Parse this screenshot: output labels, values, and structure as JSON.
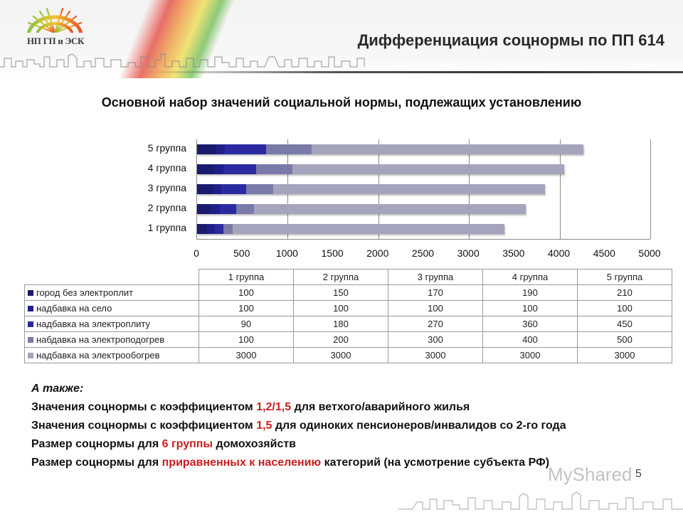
{
  "header": {
    "logo_text": "НП ГП и ЭСК",
    "title": "Дифференциация соцнормы по ПП 614"
  },
  "chart_title": "Основной набор значений социальной нормы, подлежащих установлению",
  "chart": {
    "categories_top_to_bottom": [
      "5 группа",
      "4 группа",
      "3 группа",
      "2 группа",
      "1 группа"
    ],
    "ticks": [
      "0",
      "500",
      "1000",
      "1500",
      "2000",
      "2500",
      "3000",
      "3500",
      "4000",
      "4500",
      "5000"
    ]
  },
  "table": {
    "columns": [
      "1 группа",
      "2 группа",
      "3 группа",
      "4 группа",
      "5 группа"
    ],
    "rows": [
      {
        "label": "город без электроплит",
        "values": [
          "100",
          "150",
          "170",
          "190",
          "210"
        ]
      },
      {
        "label": "надбавка на село",
        "values": [
          "100",
          "100",
          "100",
          "100",
          "100"
        ]
      },
      {
        "label": "надбавка на электроплиту",
        "values": [
          "90",
          "180",
          "270",
          "360",
          "450"
        ]
      },
      {
        "label": "набдавка на электроподогрев",
        "values": [
          "100",
          "200",
          "300",
          "400",
          "500"
        ]
      },
      {
        "label": "надбавка на электрообогрев",
        "values": [
          "3000",
          "3000",
          "3000",
          "3000",
          "3000"
        ]
      }
    ]
  },
  "notes": {
    "heading": "А также:",
    "line1": {
      "pre": "Значения соцнормы с коэффициентом ",
      "hl": "1,2/1,5",
      "post": " для ветхого/аварийного жилья"
    },
    "line2": {
      "pre": "Значения соцнормы с коэффициентом ",
      "hl": "1,5",
      "post": " для одиноких пенсионеров/инвалидов со 2-го года"
    },
    "line3": {
      "pre": "Размер соцнормы для ",
      "hl": "6 группы",
      "post": " домохозяйств"
    },
    "line4": {
      "pre": "Размер соцнормы для ",
      "hl": "приравненных к населению",
      "post": " категорий (на усмотрение субъекта РФ)"
    }
  },
  "footer": {
    "watermark": "MyShared",
    "page_number": "5"
  },
  "colors": {
    "series": [
      "#1a1a6e",
      "#1f1f8a",
      "#2a2aa0",
      "#7a7aa8",
      "#a4a4bc"
    ],
    "highlight": "#cc1e1e"
  },
  "chart_data": {
    "type": "bar",
    "orientation": "horizontal",
    "stacked": true,
    "title": "Основной набор значений социальной нормы, подлежащих установлению",
    "categories": [
      "1 группа",
      "2 группа",
      "3 группа",
      "4 группа",
      "5 группа"
    ],
    "series": [
      {
        "name": "город без электроплит",
        "values": [
          100,
          150,
          170,
          190,
          210
        ]
      },
      {
        "name": "надбавка на село",
        "values": [
          100,
          100,
          100,
          100,
          100
        ]
      },
      {
        "name": "надбавка на электроплиту",
        "values": [
          90,
          180,
          270,
          360,
          450
        ]
      },
      {
        "name": "набдавка на электроподогрев",
        "values": [
          100,
          200,
          300,
          400,
          500
        ]
      },
      {
        "name": "надбавка на электрообогрев",
        "values": [
          3000,
          3000,
          3000,
          3000,
          3000
        ]
      }
    ],
    "xlabel": "",
    "ylabel": "",
    "xlim": [
      0,
      5000
    ],
    "xticks": [
      0,
      500,
      1000,
      1500,
      2000,
      2500,
      3000,
      3500,
      4000,
      4500,
      5000
    ],
    "grid": "vertical major gridlines every 1000",
    "legend_position": "data table below chart"
  }
}
